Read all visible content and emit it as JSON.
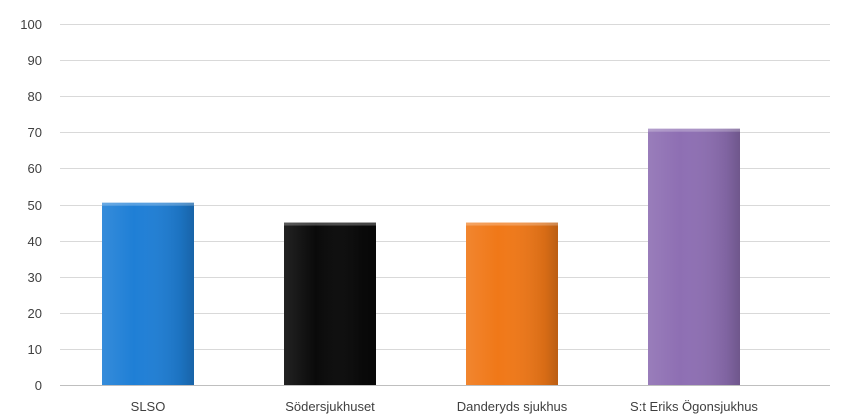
{
  "chart_data": {
    "type": "bar",
    "title": "",
    "xlabel": "",
    "ylabel": "",
    "categories": [
      "SLSO",
      "Södersjukhuset",
      "Danderyds sjukhus",
      "S:t Eriks Ögonsjukhus"
    ],
    "values": [
      50.5,
      45,
      45,
      71
    ],
    "colors": [
      "#1f7fd6",
      "#0a0a0a",
      "#f07818",
      "#8e6fb3"
    ],
    "ylim": [
      0,
      100
    ],
    "yticks": [
      0,
      10,
      20,
      30,
      40,
      50,
      60,
      70,
      80,
      90,
      100
    ],
    "grid": true,
    "legend": "none"
  }
}
